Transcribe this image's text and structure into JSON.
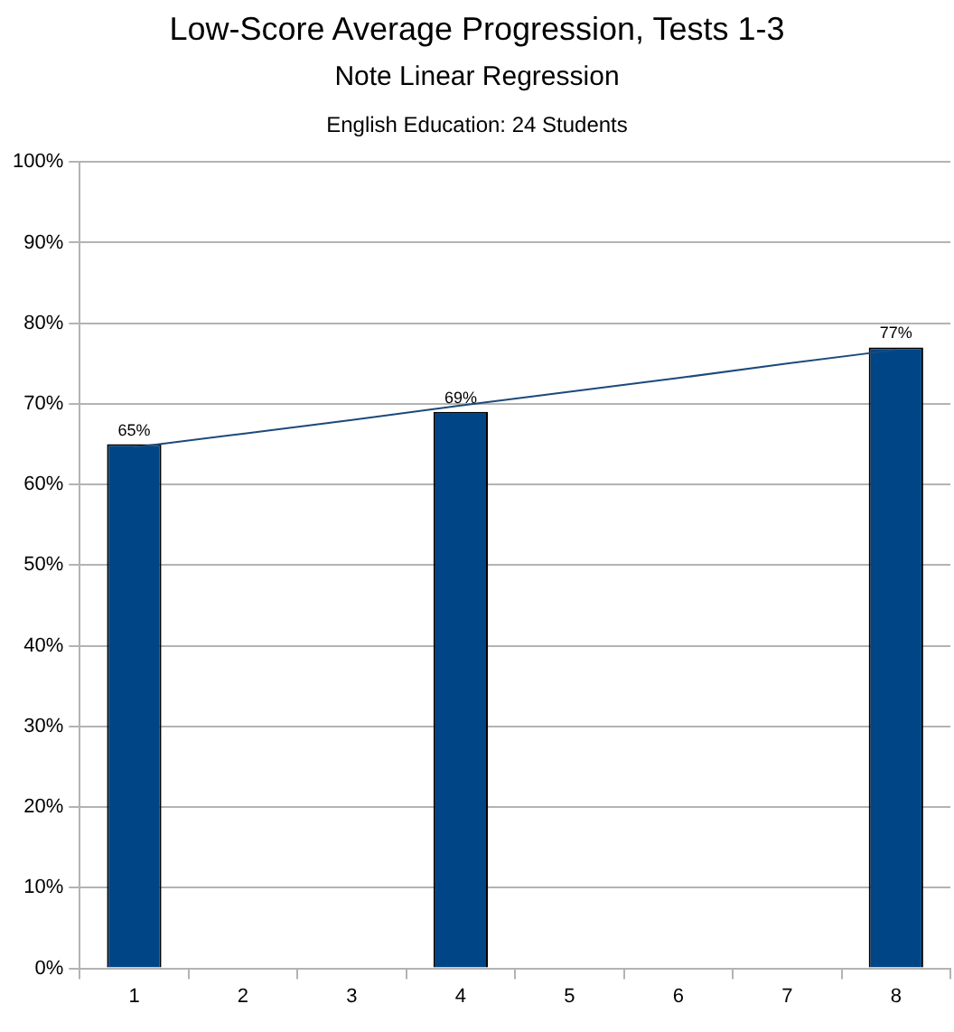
{
  "chart_data": {
    "type": "bar",
    "title": "Low-Score Average Progression, Tests 1-3",
    "subtitle": "Note Linear Regression",
    "annotations": [
      "English Education: 24 Students"
    ],
    "categories": [
      "1",
      "2",
      "3",
      "4",
      "5",
      "6",
      "7",
      "8"
    ],
    "series": [
      {
        "color": "#004586",
        "values": [
          65,
          null,
          null,
          69,
          null,
          null,
          null,
          77
        ],
        "value_labels": [
          "65%",
          null,
          null,
          "69%",
          null,
          null,
          null,
          "77%"
        ]
      },
      {
        "type": "line",
        "color": "#1c4a7a",
        "values": [
          64.6,
          66.3,
          68.0,
          69.8,
          71.5,
          73.2,
          75.0,
          76.7
        ]
      }
    ],
    "ylim": [
      0,
      100
    ],
    "yticks": [
      {
        "value": 0,
        "label": "0%"
      },
      {
        "value": 10,
        "label": "10%"
      },
      {
        "value": 20,
        "label": "20%"
      },
      {
        "value": 30,
        "label": "30%"
      },
      {
        "value": 40,
        "label": "40%"
      },
      {
        "value": 50,
        "label": "50%"
      },
      {
        "value": 60,
        "label": "60%"
      },
      {
        "value": 70,
        "label": "70%"
      },
      {
        "value": 80,
        "label": "80%"
      },
      {
        "value": 90,
        "label": "90%"
      },
      {
        "value": 100,
        "label": "100%"
      }
    ],
    "grid": "y",
    "legend": false,
    "marker": "none",
    "line_style": "solid"
  }
}
